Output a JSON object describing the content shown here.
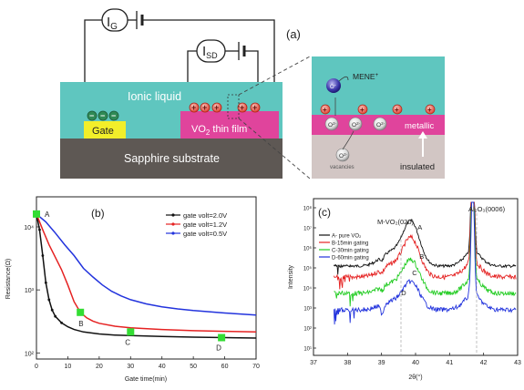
{
  "panel_a": {
    "label": "(a)",
    "ig_label": "I",
    "ig_sub": "G",
    "isd_label": "I",
    "isd_sub": "SD",
    "ionic_liquid": "Ionic liquid",
    "gate": "Gate",
    "vo2_prefix": "VO",
    "vo2_sub": "2",
    "vo2_suffix": " thin film",
    "substrate": "Sapphire substrate",
    "inset_mene": "MENE",
    "inset_sup": "+",
    "inset_o": "O",
    "inset_metallic": "metallic",
    "inset_vacancies": "vacancies",
    "inset_insulated": "insulated",
    "colors": {
      "liquid": "#5fc6bf",
      "gate": "#f2ee2a",
      "film": "#e0449c",
      "substrate": "#5e5854",
      "inset_bottom": "#d2c6c4"
    }
  },
  "chart_data": [
    {
      "type": "line",
      "label": "(b)",
      "xlabel": "Gate time(min)",
      "ylabel": "Resistance(Ω)",
      "xlim": [
        0,
        70
      ],
      "x_ticks": [
        "0",
        "10",
        "20",
        "30",
        "40",
        "50",
        "60",
        "70"
      ],
      "y_scale": "log",
      "y_ticks": [
        {
          "value": 100,
          "label": "10²"
        },
        {
          "value": 1000,
          "label": "10³"
        },
        {
          "value": 10000,
          "label": "10⁴"
        }
      ],
      "legend_position": "top-right",
      "series": [
        {
          "name": "gate volt=2.0V",
          "color": "#111111",
          "x": [
            0,
            1,
            2,
            3,
            4,
            5,
            6,
            8,
            10,
            12,
            15,
            20,
            25,
            30,
            40,
            50,
            60,
            70
          ],
          "y": [
            16000,
            9000,
            3500,
            1300,
            700,
            480,
            380,
            300,
            260,
            235,
            215,
            200,
            192,
            188,
            182,
            178,
            175,
            172
          ]
        },
        {
          "name": "gate volt=1.2V",
          "color": "#e52222",
          "x": [
            0,
            2,
            4,
            6,
            8,
            10,
            12,
            14,
            16,
            18,
            20,
            25,
            30,
            40,
            50,
            60,
            70
          ],
          "y": [
            16000,
            9000,
            5200,
            3300,
            2100,
            1200,
            650,
            440,
            360,
            320,
            295,
            265,
            250,
            235,
            225,
            220,
            215
          ]
        },
        {
          "name": "gate volt=0.5V",
          "color": "#2233dd",
          "x": [
            0,
            3,
            6,
            9,
            12,
            15,
            18,
            21,
            24,
            27,
            30,
            35,
            40,
            45,
            50,
            55,
            60,
            65,
            70
          ],
          "y": [
            16000,
            12000,
            8000,
            5200,
            3500,
            2200,
            1600,
            1200,
            950,
            800,
            700,
            600,
            540,
            500,
            470,
            450,
            430,
            415,
            400
          ]
        }
      ],
      "markers": [
        {
          "label": "A",
          "x": 0,
          "y": 16000
        },
        {
          "label": "B",
          "x": 14,
          "y": 440
        },
        {
          "label": "C",
          "x": 30,
          "y": 215
        },
        {
          "label": "D",
          "x": 59,
          "y": 175
        }
      ]
    },
    {
      "type": "line",
      "label": "(c)",
      "xlabel": "2θ(°)",
      "ylabel": "Intensity",
      "xlim": [
        37,
        43
      ],
      "x_ticks": [
        "37",
        "38",
        "39",
        "40",
        "41",
        "42",
        "43"
      ],
      "y_scale": "log",
      "y_ticks": [
        "10¹",
        "10²",
        "10³",
        "10⁴",
        "10⁵",
        "10⁶",
        "10⁷",
        "10⁸"
      ],
      "legend_position": "top-left",
      "peak_labels": [
        "M-VO₂(020)",
        "Al₂O₃(0006)"
      ],
      "series": [
        {
          "name": "A- pure VO₂",
          "color": "#111111",
          "points_label": "A"
        },
        {
          "name": "B-15min gating",
          "color": "#e52222",
          "points_label": "B"
        },
        {
          "name": "C-30min gating",
          "color": "#22cc22",
          "points_label": "C"
        },
        {
          "name": "D-60min gating",
          "color": "#2233dd",
          "points_label": "D"
        }
      ]
    }
  ]
}
